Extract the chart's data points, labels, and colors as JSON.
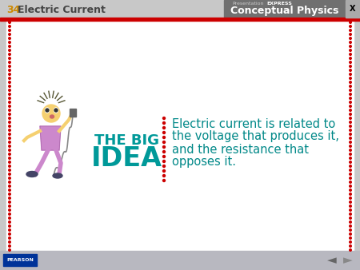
{
  "title_number": "34",
  "title_text": "Electric Current",
  "header_bg_color": "#c8c8c8",
  "header_red_stripe": "#cc0000",
  "header_right_bg": "#707070",
  "conceptual_physics": "Conceptual Physics",
  "presentation_text": "Presentation",
  "express_text": "EXPRESS",
  "main_bg": "#ffffff",
  "border_color": "#cc0000",
  "big_idea_line1": "THE BIG",
  "big_idea_line2": "IDEA",
  "big_idea_color": "#009999",
  "body_text_lines": [
    "Electric current is related to",
    "the voltage that produces it,",
    "and the resistance that",
    "opposes it."
  ],
  "body_text_color": "#008888",
  "body_text_fontsize": 10.5,
  "footer_bg": "#b8b8c0",
  "pearson_text": "PEARSON",
  "dotted_color": "#cc0000",
  "title_number_color": "#cc8800",
  "title_text_color": "#444444"
}
